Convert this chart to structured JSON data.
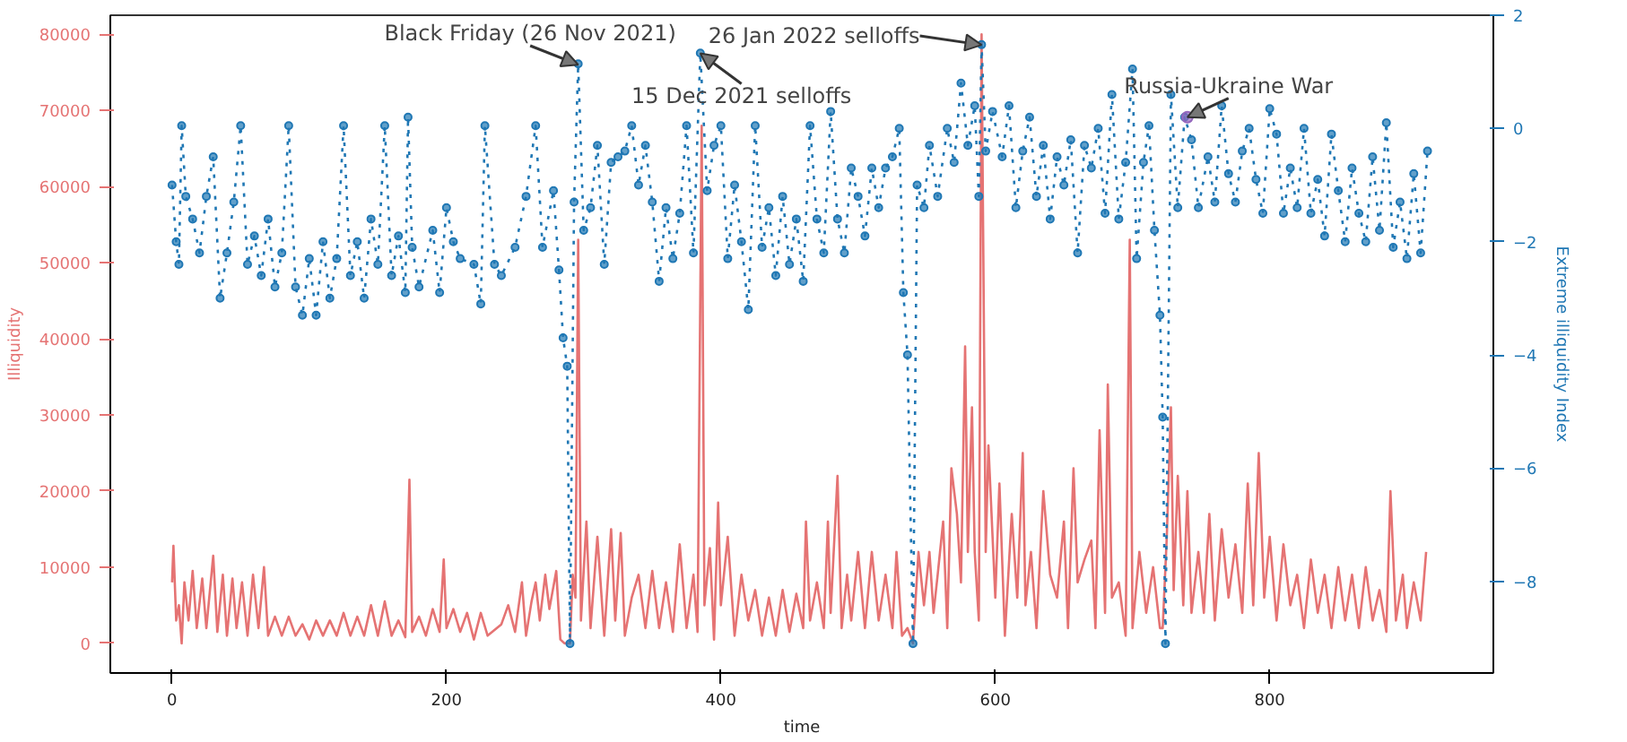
{
  "chart_data": {
    "type": "line",
    "xlabel": "time",
    "ylabel": "Illiquidity",
    "y2label": "Extreme illiquidity Index",
    "xlim": [
      -45,
      963
    ],
    "xticks": [
      0,
      200,
      400,
      600,
      800
    ],
    "ylim": [
      -3900,
      82500
    ],
    "yticks": [
      0,
      10000,
      20000,
      30000,
      40000,
      50000,
      60000,
      70000,
      80000
    ],
    "y2lim": [
      -9.62,
      2
    ],
    "y2ticks": [
      {
        "value": -8,
        "label": "−8"
      },
      {
        "value": -6,
        "label": "−6"
      },
      {
        "value": -4,
        "label": "−4"
      },
      {
        "value": -2,
        "label": "−2"
      },
      0,
      2
    ],
    "grid": false,
    "series": [
      {
        "color": "#e57373",
        "marker": "none",
        "line_style": "solid",
        "x": [
          0,
          1,
          3,
          5,
          7,
          9,
          12,
          15,
          18,
          22,
          25,
          30,
          33,
          37,
          40,
          44,
          47,
          51,
          55,
          59,
          63,
          67,
          70,
          75,
          80,
          85,
          90,
          95,
          100,
          105,
          110,
          115,
          120,
          125,
          130,
          135,
          140,
          145,
          150,
          155,
          160,
          165,
          170,
          173,
          175,
          180,
          185,
          190,
          195,
          198,
          200,
          205,
          210,
          215,
          220,
          225,
          230,
          240,
          245,
          250,
          255,
          258,
          262,
          265,
          268,
          272,
          275,
          280,
          283,
          286,
          290,
          292,
          294,
          296,
          298,
          302,
          305,
          310,
          315,
          320,
          323,
          327,
          330,
          335,
          340,
          345,
          350,
          355,
          360,
          365,
          370,
          375,
          380,
          383,
          386,
          388,
          392,
          395,
          398,
          400,
          405,
          410,
          415,
          420,
          425,
          430,
          435,
          440,
          445,
          450,
          455,
          460,
          462,
          465,
          470,
          475,
          478,
          480,
          485,
          488,
          492,
          495,
          500,
          505,
          510,
          515,
          520,
          525,
          528,
          532,
          536,
          540,
          544,
          548,
          552,
          555,
          558,
          562,
          565,
          568,
          572,
          575,
          578,
          580,
          583,
          585,
          588,
          590,
          593,
          595,
          600,
          603,
          607,
          612,
          616,
          620,
          622,
          626,
          630,
          635,
          640,
          645,
          650,
          653,
          657,
          660,
          665,
          670,
          673,
          676,
          680,
          682,
          685,
          690,
          695,
          698,
          700,
          705,
          710,
          715,
          720,
          722,
          725,
          728,
          730,
          733,
          737,
          740,
          743,
          748,
          752,
          756,
          760,
          765,
          770,
          775,
          780,
          784,
          788,
          792,
          796,
          800,
          805,
          810,
          815,
          820,
          825,
          830,
          835,
          840,
          845,
          850,
          855,
          860,
          865,
          870,
          875,
          880,
          885,
          888,
          892,
          897,
          900,
          905,
          910,
          914
        ],
        "values": [
          8000,
          12800,
          3000,
          5000,
          0,
          8000,
          3000,
          9500,
          2000,
          8500,
          2000,
          11500,
          1500,
          9000,
          1000,
          8500,
          2000,
          8000,
          1000,
          9000,
          2000,
          10000,
          1000,
          3500,
          1000,
          3500,
          1000,
          2500,
          500,
          3000,
          1000,
          3000,
          1000,
          4000,
          1000,
          3500,
          1000,
          5000,
          1000,
          5500,
          1000,
          3000,
          800,
          21500,
          1500,
          3500,
          1000,
          4500,
          1500,
          11000,
          2000,
          4500,
          1500,
          4000,
          500,
          4000,
          1000,
          2500,
          5000,
          1500,
          8000,
          1000,
          5500,
          8000,
          3000,
          9000,
          4500,
          9500,
          500,
          0,
          0,
          9000,
          6000,
          53000,
          3000,
          16000,
          2000,
          14000,
          1000,
          15000,
          3000,
          14500,
          1000,
          6000,
          9000,
          2000,
          9500,
          2000,
          8000,
          1500,
          13000,
          2000,
          9000,
          1500,
          68000,
          5000,
          12500,
          500,
          18500,
          5000,
          14000,
          1000,
          9000,
          3000,
          7000,
          1000,
          6000,
          1000,
          7000,
          1500,
          6500,
          2000,
          16000,
          3000,
          8000,
          2000,
          16000,
          4000,
          22000,
          2000,
          9000,
          3000,
          12000,
          2000,
          12000,
          3000,
          9000,
          2000,
          12000,
          1000,
          2000,
          0,
          12000,
          5000,
          12000,
          4000,
          9000,
          16000,
          2000,
          23000,
          17000,
          8000,
          39000,
          12000,
          31000,
          12000,
          3000,
          80000,
          12000,
          26000,
          6000,
          21000,
          1000,
          17000,
          6000,
          25000,
          5000,
          12000,
          2000,
          20000,
          9000,
          6000,
          16000,
          2000,
          23000,
          8000,
          11000,
          13500,
          2000,
          28000,
          4000,
          34000,
          6000,
          8000,
          1000,
          53000,
          2000,
          12000,
          4000,
          10000,
          2000,
          2000,
          14000,
          31000,
          7000,
          22000,
          5000,
          20000,
          4000,
          12000,
          4000,
          17000,
          3000,
          15000,
          6000,
          13000,
          4000,
          21000,
          5000,
          25000,
          6000,
          14000,
          3000,
          13000,
          5000,
          9000,
          2000,
          11000,
          4000,
          9000,
          2000,
          10000,
          3000,
          9000,
          2000,
          10000,
          3000,
          7000,
          1500,
          20000,
          3000,
          9000,
          2000,
          8000,
          3000,
          12000
        ]
      },
      {
        "axis": "y2",
        "color": "#1f77b4",
        "marker": "circle",
        "line_style": "dotted",
        "x": [
          0,
          3,
          5,
          7,
          10,
          15,
          20,
          25,
          30,
          35,
          40,
          45,
          50,
          55,
          60,
          65,
          70,
          75,
          80,
          85,
          90,
          95,
          100,
          105,
          110,
          115,
          120,
          125,
          130,
          135,
          140,
          145,
          150,
          155,
          160,
          165,
          170,
          172,
          175,
          180,
          190,
          195,
          200,
          205,
          210,
          220,
          225,
          228,
          235,
          240,
          250,
          258,
          265,
          270,
          278,
          282,
          285,
          288,
          290,
          293,
          296,
          300,
          305,
          310,
          315,
          320,
          325,
          330,
          335,
          340,
          345,
          350,
          355,
          360,
          365,
          370,
          375,
          380,
          385,
          390,
          395,
          400,
          405,
          410,
          415,
          420,
          425,
          430,
          435,
          440,
          445,
          450,
          455,
          460,
          465,
          470,
          475,
          480,
          485,
          490,
          495,
          500,
          505,
          510,
          515,
          520,
          525,
          530,
          533,
          536,
          540,
          543,
          548,
          552,
          558,
          565,
          570,
          575,
          580,
          585,
          588,
          590,
          593,
          598,
          605,
          610,
          615,
          620,
          625,
          630,
          635,
          640,
          645,
          650,
          655,
          660,
          665,
          670,
          675,
          680,
          685,
          690,
          695,
          700,
          703,
          708,
          712,
          716,
          720,
          722,
          724,
          728,
          733,
          738,
          743,
          748,
          755,
          760,
          765,
          770,
          775,
          780,
          785,
          790,
          795,
          800,
          805,
          810,
          815,
          820,
          825,
          830,
          835,
          840,
          845,
          850,
          855,
          860,
          865,
          870,
          875,
          880,
          885,
          890,
          895,
          900,
          905,
          910,
          915
        ],
        "values": [
          -1.0,
          -2.0,
          -2.4,
          0.05,
          -1.2,
          -1.6,
          -2.2,
          -1.2,
          -0.5,
          -3.0,
          -2.2,
          -1.3,
          0.05,
          -2.4,
          -1.9,
          -2.6,
          -1.6,
          -2.8,
          -2.2,
          0.05,
          -2.8,
          -3.3,
          -2.3,
          -3.3,
          -2.0,
          -3.0,
          -2.3,
          0.05,
          -2.6,
          -2.0,
          -3.0,
          -1.6,
          -2.4,
          0.05,
          -2.6,
          -1.9,
          -2.9,
          0.2,
          -2.1,
          -2.8,
          -1.8,
          -2.9,
          -1.4,
          -2.0,
          -2.3,
          -2.4,
          -3.1,
          0.05,
          -2.4,
          -2.6,
          -2.1,
          -1.2,
          0.05,
          -2.1,
          -1.1,
          -2.5,
          -3.7,
          -4.2,
          -9.1,
          -1.3,
          1.14,
          -1.8,
          -1.4,
          -0.3,
          -2.4,
          -0.6,
          -0.5,
          -0.4,
          0.05,
          -1.0,
          -0.3,
          -1.3,
          -2.7,
          -1.4,
          -2.3,
          -1.5,
          0.05,
          -2.2,
          1.33,
          -1.1,
          -0.3,
          0.05,
          -2.3,
          -1.0,
          -2.0,
          -3.2,
          0.05,
          -2.1,
          -1.4,
          -2.6,
          -1.2,
          -2.4,
          -1.6,
          -2.7,
          0.05,
          -1.6,
          -2.2,
          0.3,
          -1.6,
          -2.2,
          -0.7,
          -1.2,
          -1.9,
          -0.7,
          -1.4,
          -0.7,
          -0.5,
          0.0,
          -2.9,
          -4.0,
          -9.1,
          -1.0,
          -1.4,
          -0.3,
          -1.2,
          0.0,
          -0.6,
          0.8,
          -0.3,
          0.4,
          -1.2,
          1.48,
          -0.4,
          0.3,
          -0.5,
          0.4,
          -1.4,
          -0.4,
          0.2,
          -1.2,
          -0.3,
          -1.6,
          -0.5,
          -1.0,
          -0.2,
          -2.2,
          -0.3,
          -0.7,
          0.0,
          -1.5,
          0.6,
          -1.6,
          -0.6,
          1.05,
          -2.3,
          -0.6,
          0.05,
          -1.8,
          -3.3,
          -5.1,
          -9.1,
          0.6,
          -1.4,
          0.2,
          -0.2,
          -1.4,
          -0.5,
          -1.3,
          0.4,
          -0.8,
          -1.3,
          -0.4,
          0.0,
          -0.9,
          -1.5,
          0.35,
          -0.1,
          -1.5,
          -0.7,
          -1.4,
          0.0,
          -1.5,
          -0.9,
          -1.9,
          -0.1,
          -1.1,
          -2.0,
          -0.7,
          -1.5,
          -2.0,
          -0.5,
          -1.8,
          0.1,
          -2.1,
          -1.3,
          -2.3,
          -0.8,
          -2.2,
          -0.4
        ]
      },
      {
        "type": "scatter",
        "axis": "y2",
        "color": "#9467bd",
        "marker": "circle",
        "x": [
          740
        ],
        "values": [
          0.2
        ]
      }
    ],
    "annotations": [
      {
        "text": "Black Friday (26 Nov 2021)",
        "x": 296,
        "y": 76000
      },
      {
        "text": "15 Dec 2021 selloffs",
        "x": 385,
        "y": 77500
      },
      {
        "text": "26 Jan 2022 selloffs",
        "x": 590,
        "y": 78600
      },
      {
        "text": "Russia-Ukraine War",
        "x": 740,
        "y": 69100
      }
    ]
  }
}
